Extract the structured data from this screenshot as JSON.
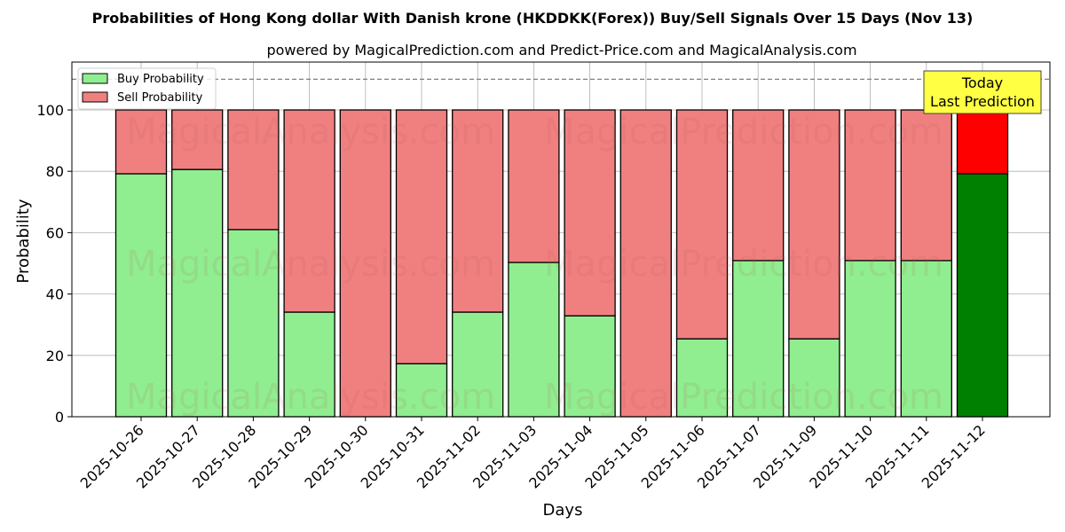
{
  "chart_data": {
    "type": "bar",
    "stacked": true,
    "title": "Probabilities of Hong Kong dollar With Danish krone (HKDDKK(Forex)) Buy/Sell Signals Over 15 Days (Nov 13)",
    "subtitle": "powered by MagicalPrediction.com and Predict-Price.com and MagicalAnalysis.com",
    "xlabel": "Days",
    "ylabel": "Probability",
    "ylim": [
      0,
      115
    ],
    "yticks": [
      0,
      20,
      40,
      60,
      80,
      100
    ],
    "grid": true,
    "legend_position": "upper left",
    "categories": [
      "2025-10-26",
      "2025-10-27",
      "2025-10-28",
      "2025-10-29",
      "2025-10-30",
      "2025-10-31",
      "2025-11-02",
      "2025-11-03",
      "2025-11-04",
      "2025-11-05",
      "2025-11-06",
      "2025-11-07",
      "2025-11-09",
      "2025-11-10",
      "2025-11-11",
      "2025-11-12"
    ],
    "series": [
      {
        "name": "Buy Probability",
        "color": "#90ee90",
        "values": [
          79.2,
          80.6,
          61.0,
          34.1,
          0,
          17.3,
          34.1,
          50.3,
          32.9,
          0,
          25.4,
          50.9,
          25.4,
          50.9,
          50.9,
          79.2
        ]
      },
      {
        "name": "Sell Probability",
        "color": "#f08080",
        "values": [
          20.8,
          19.4,
          39.0,
          65.9,
          100,
          82.7,
          65.9,
          49.7,
          67.1,
          100,
          74.6,
          49.1,
          74.6,
          49.1,
          49.1,
          20.8
        ]
      }
    ],
    "highlight": {
      "index": 15,
      "buy_color": "#008000",
      "sell_color": "#ff0000"
    },
    "reference_line": {
      "y": 110,
      "style": "dashed",
      "color": "#808080"
    },
    "annotation": {
      "line1": "Today",
      "line2": "Last Prediction",
      "bg": "#ffff44"
    },
    "watermarks": [
      "MagicalAnalysis.com",
      "MagicalPrediction.com"
    ]
  }
}
